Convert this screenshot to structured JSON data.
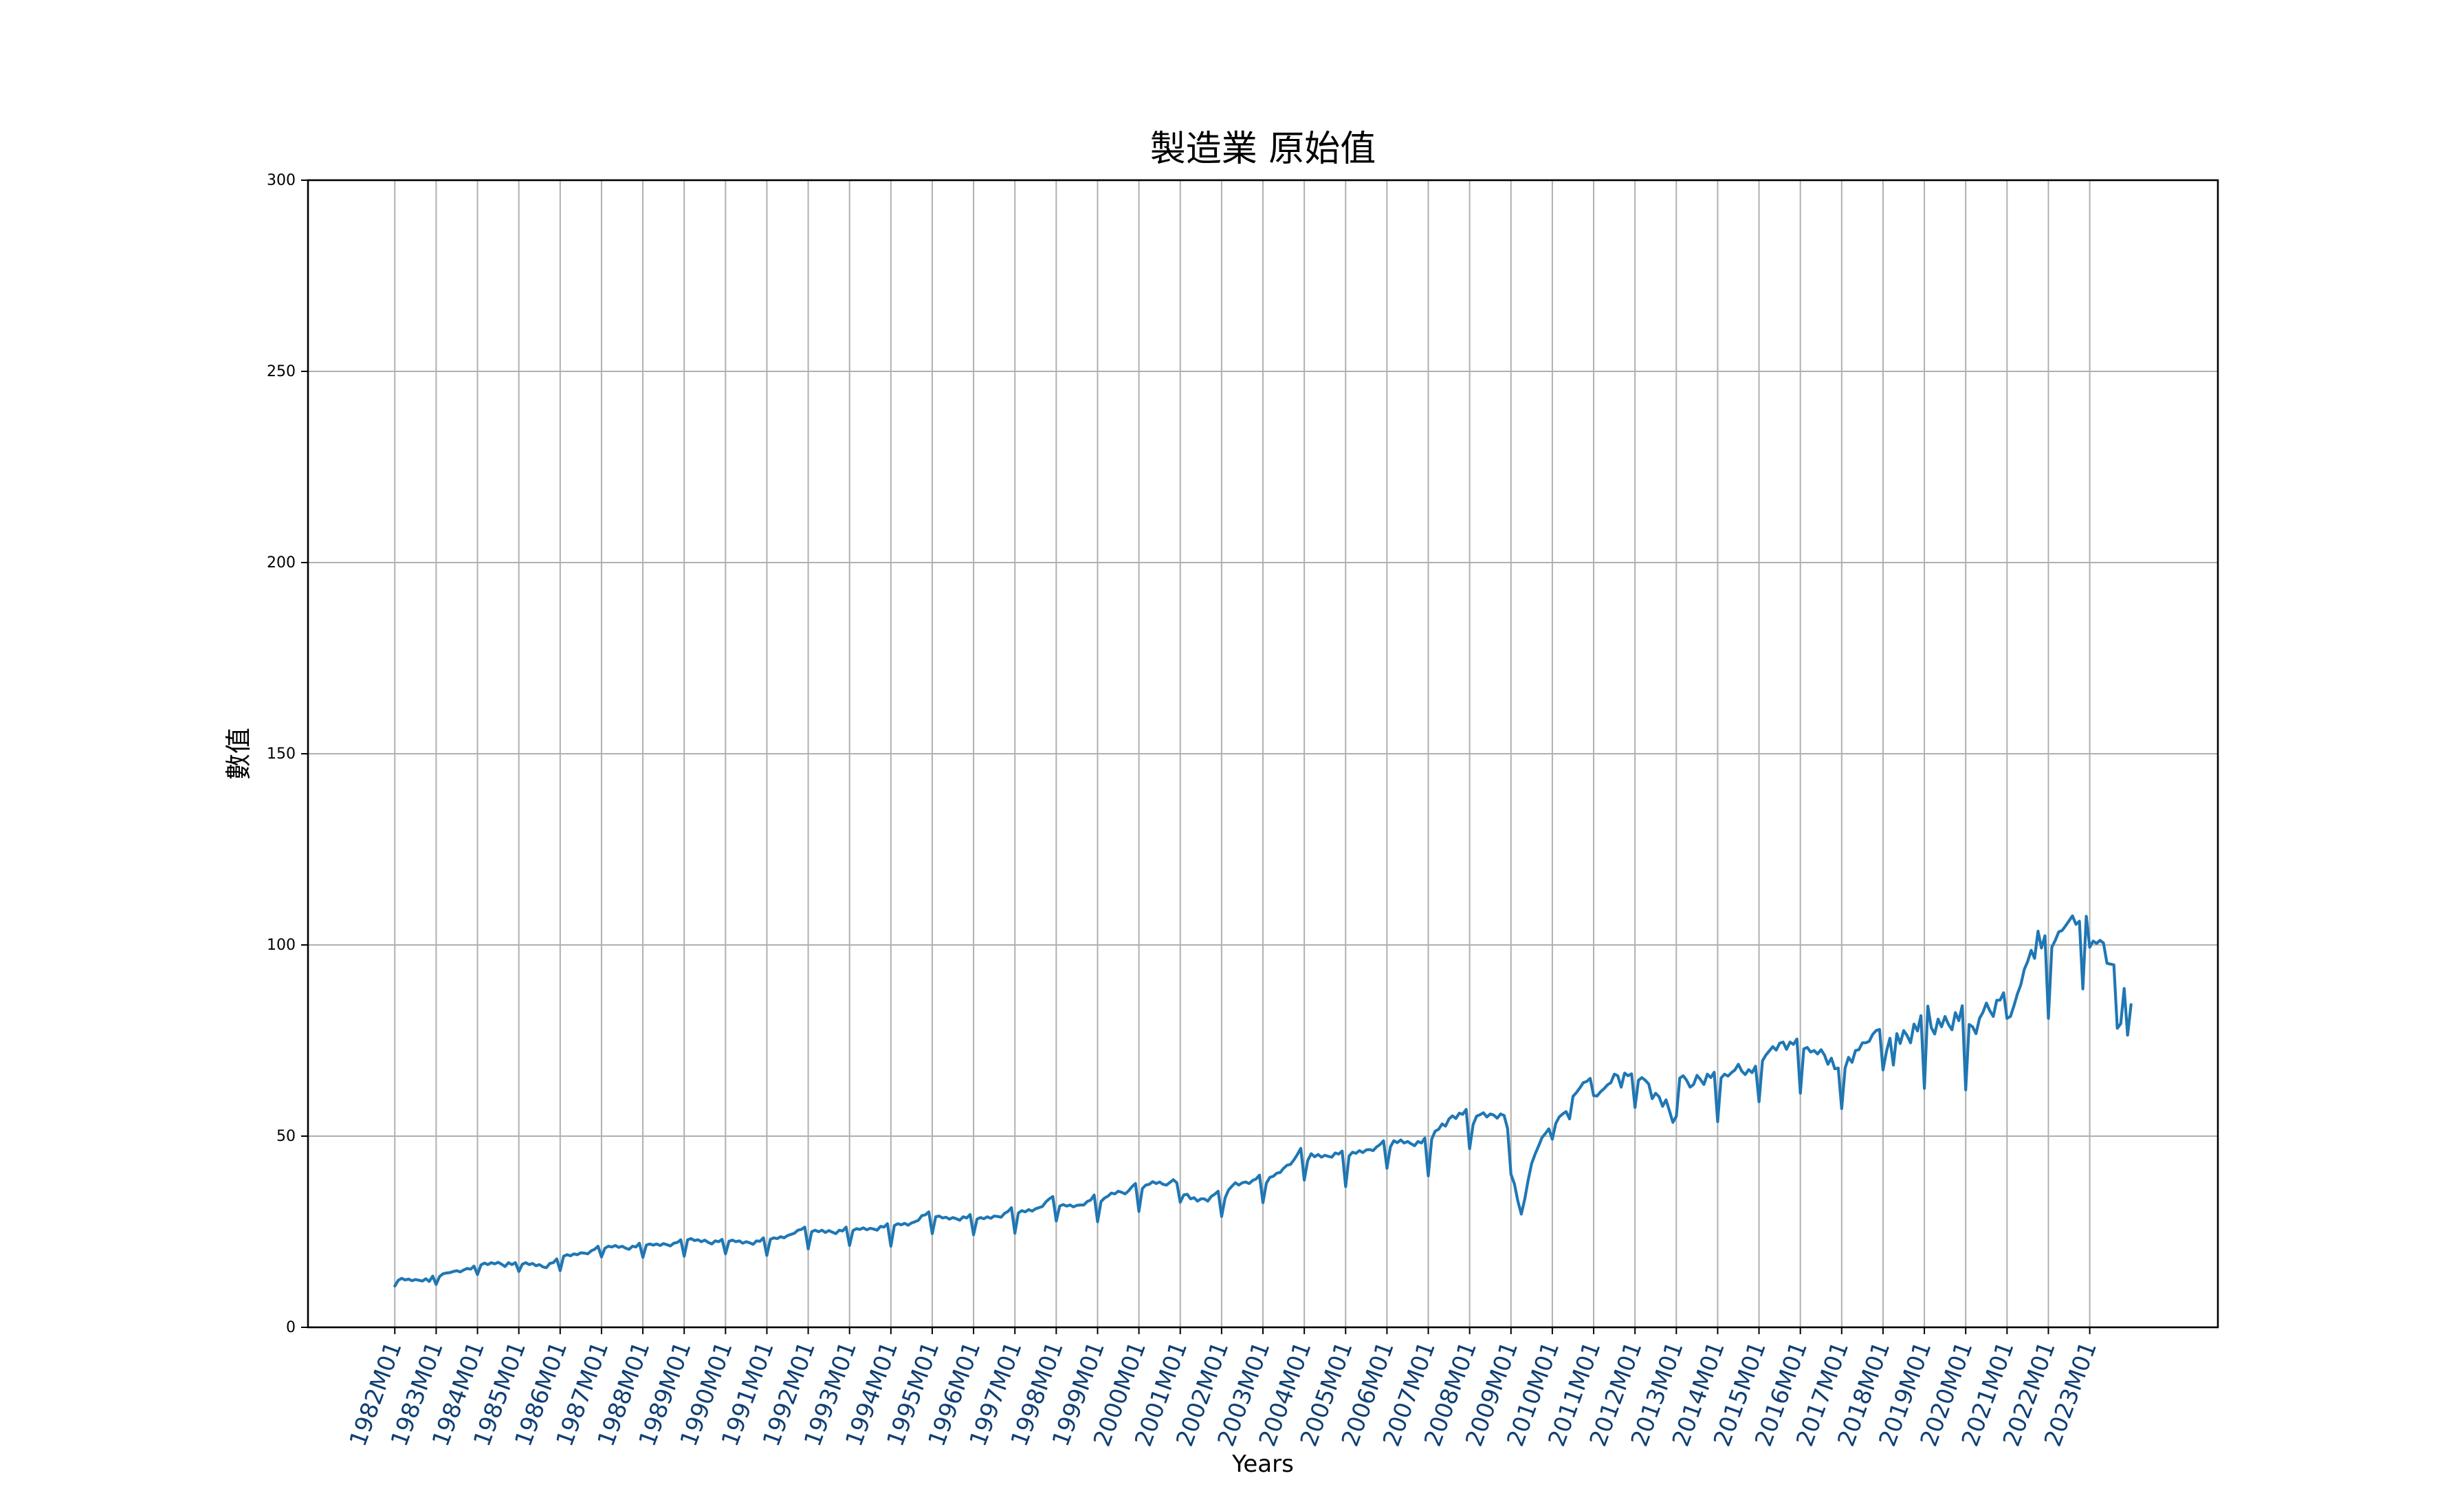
{
  "chart_data": {
    "type": "line",
    "title": "製造業 原始值",
    "xlabel": "Years",
    "ylabel": "數值",
    "ylim": [
      0,
      300
    ],
    "yticks": [
      0,
      50,
      100,
      150,
      200,
      250,
      300
    ],
    "grid": true,
    "x_start": "1982M01",
    "x_end": "2023M05",
    "xtick_labels": [
      "1982M01",
      "1983M01",
      "1984M01",
      "1985M01",
      "1986M01",
      "1987M01",
      "1988M01",
      "1989M01",
      "1990M01",
      "1991M01",
      "1992M01",
      "1993M01",
      "1994M01",
      "1995M01",
      "1996M01",
      "1997M01",
      "1998M01",
      "1999M01",
      "2000M01",
      "2001M01",
      "2002M01",
      "2003M01",
      "2004M01",
      "2005M01",
      "2006M01",
      "2007M01",
      "2008M01",
      "2009M01",
      "2010M01",
      "2011M01",
      "2012M01",
      "2013M01",
      "2014M01",
      "2015M01",
      "2016M01",
      "2017M01",
      "2018M01",
      "2019M01",
      "2020M01",
      "2021M01",
      "2022M01",
      "2023M01"
    ],
    "series": [
      {
        "color": "#1f77b4",
        "values": [
          10.8,
          12.3,
          12.8,
          12.4,
          12.6,
          12.2,
          12.5,
          12.3,
          12.1,
          12.7,
          12.0,
          13.4,
          11.2,
          13.3,
          14.0,
          14.2,
          14.3,
          14.6,
          14.8,
          14.5,
          15.0,
          15.4,
          15.2,
          16.0,
          13.8,
          16.3,
          16.8,
          16.4,
          16.9,
          16.6,
          17.0,
          16.5,
          15.9,
          16.9,
          16.4,
          16.9,
          14.6,
          16.5,
          16.9,
          16.4,
          16.7,
          16.1,
          16.4,
          15.8,
          15.6,
          16.7,
          16.9,
          17.9,
          14.8,
          18.6,
          19.0,
          18.7,
          19.2,
          19.0,
          19.5,
          19.4,
          19.2,
          20.0,
          20.4,
          21.2,
          18.4,
          20.7,
          21.2,
          21.0,
          21.4,
          20.9,
          21.2,
          20.7,
          20.4,
          21.2,
          21.0,
          22.0,
          18.3,
          21.5,
          21.8,
          21.5,
          21.8,
          21.4,
          21.9,
          21.6,
          21.3,
          22.0,
          22.2,
          22.9,
          18.6,
          22.9,
          23.2,
          22.7,
          22.9,
          22.4,
          22.8,
          22.2,
          21.8,
          22.6,
          22.4,
          23.0,
          19.2,
          22.5,
          22.8,
          22.4,
          22.6,
          22.0,
          22.4,
          22.1,
          21.7,
          22.6,
          22.5,
          23.4,
          18.8,
          23.0,
          23.4,
          23.2,
          23.7,
          23.4,
          24.0,
          24.3,
          24.6,
          25.4,
          25.6,
          26.2,
          20.5,
          25.0,
          25.4,
          25.0,
          25.4,
          24.8,
          25.3,
          24.9,
          24.5,
          25.4,
          25.2,
          26.2,
          21.4,
          25.3,
          25.8,
          25.6,
          26.0,
          25.5,
          25.9,
          25.7,
          25.4,
          26.4,
          26.2,
          27.1,
          21.2,
          26.6,
          27.1,
          26.8,
          27.2,
          26.7,
          27.3,
          27.6,
          28.0,
          29.2,
          29.4,
          30.2,
          24.5,
          28.9,
          29.1,
          28.6,
          28.8,
          28.3,
          28.7,
          28.4,
          28.0,
          28.9,
          28.6,
          29.5,
          24.2,
          28.3,
          28.7,
          28.4,
          28.9,
          28.5,
          29.1,
          29.0,
          28.8,
          29.8,
          30.3,
          31.3,
          24.6,
          29.9,
          30.5,
          30.2,
          30.8,
          30.4,
          31.0,
          31.3,
          31.6,
          32.8,
          33.6,
          34.2,
          27.8,
          31.7,
          32.1,
          31.7,
          32.0,
          31.5,
          31.9,
          32.0,
          32.0,
          32.9,
          33.3,
          34.6,
          27.6,
          32.9,
          33.8,
          34.3,
          35.1,
          34.9,
          35.6,
          35.3,
          34.9,
          35.7,
          36.8,
          37.6,
          30.3,
          36.3,
          37.2,
          37.4,
          38.1,
          37.6,
          38.0,
          37.4,
          37.2,
          37.9,
          38.6,
          37.8,
          32.7,
          34.6,
          34.8,
          33.6,
          33.9,
          33.0,
          33.6,
          33.6,
          33.0,
          34.2,
          34.8,
          35.6,
          29.0,
          33.8,
          35.9,
          36.9,
          37.8,
          37.2,
          37.8,
          38.0,
          37.6,
          38.4,
          38.8,
          39.8,
          32.6,
          37.7,
          39.2,
          39.5,
          40.3,
          40.5,
          41.6,
          42.4,
          42.6,
          43.8,
          45.2,
          46.8,
          38.5,
          43.6,
          45.4,
          44.6,
          45.2,
          44.5,
          45.0,
          44.7,
          44.5,
          45.6,
          45.3,
          46.1,
          36.8,
          44.8,
          45.8,
          45.5,
          46.2,
          45.7,
          46.4,
          46.5,
          46.2,
          47.2,
          47.8,
          48.8,
          41.6,
          47.2,
          48.8,
          48.3,
          49.0,
          48.2,
          48.6,
          48.0,
          47.5,
          48.6,
          48.2,
          49.5,
          39.6,
          49.2,
          51.3,
          51.8,
          53.2,
          52.6,
          54.5,
          55.3,
          54.6,
          56.0,
          55.7,
          57.0,
          46.7,
          53.0,
          55.2,
          55.6,
          56.1,
          55.0,
          55.8,
          55.5,
          54.7,
          55.8,
          55.4,
          52.0,
          40.0,
          37.5,
          33.0,
          29.6,
          33.5,
          38.5,
          42.8,
          45.3,
          47.4,
          49.6,
          50.7,
          51.9,
          49.2,
          53.3,
          55.0,
          55.8,
          56.4,
          54.5,
          60.4,
          61.4,
          62.6,
          64.0,
          64.3,
          65.1,
          60.6,
          60.5,
          61.6,
          62.4,
          63.4,
          64.0,
          66.2,
          65.8,
          62.8,
          66.5,
          65.8,
          66.3,
          57.5,
          64.6,
          65.3,
          64.6,
          63.6,
          59.8,
          61.2,
          60.3,
          57.8,
          59.5,
          56.6,
          53.6,
          55.2,
          65.2,
          65.8,
          64.6,
          62.8,
          63.5,
          65.9,
          64.8,
          63.5,
          66.2,
          65.3,
          66.7,
          53.8,
          65.2,
          66.2,
          65.7,
          66.6,
          67.3,
          68.8,
          67.0,
          66.1,
          67.4,
          66.6,
          68.3,
          59.0,
          69.7,
          71.2,
          72.3,
          73.4,
          72.5,
          74.3,
          74.6,
          72.7,
          74.6,
          74.0,
          75.4,
          61.2,
          72.8,
          73.2,
          72.0,
          72.4,
          71.5,
          72.6,
          71.2,
          68.8,
          70.4,
          67.6,
          67.8,
          57.2,
          67.8,
          70.6,
          69.3,
          72.4,
          72.6,
          74.4,
          74.4,
          74.8,
          76.6,
          77.6,
          77.9,
          67.3,
          72.2,
          75.6,
          68.6,
          76.8,
          74.2,
          77.6,
          76.3,
          74.4,
          79.3,
          77.5,
          81.5,
          62.5,
          84.0,
          78.4,
          76.7,
          80.6,
          78.6,
          81.3,
          79.2,
          77.8,
          82.3,
          80.2,
          84.1,
          62.1,
          79.2,
          78.6,
          76.8,
          80.8,
          82.4,
          84.8,
          82.8,
          81.3,
          85.5,
          85.6,
          87.5,
          80.8,
          81.3,
          84.1,
          87.2,
          89.6,
          93.6,
          95.7,
          98.6,
          96.5,
          103.6,
          99.2,
          102.4,
          80.8,
          99.4,
          101.2,
          103.4,
          103.8,
          105.0,
          106.3,
          107.6,
          105.4,
          106.2,
          88.5,
          107.5,
          99.4,
          101.0,
          100.4,
          101.2,
          100.5,
          95.2,
          95.0,
          94.8,
          78.2,
          79.4,
          88.6,
          76.4,
          84.4
        ]
      }
    ]
  }
}
